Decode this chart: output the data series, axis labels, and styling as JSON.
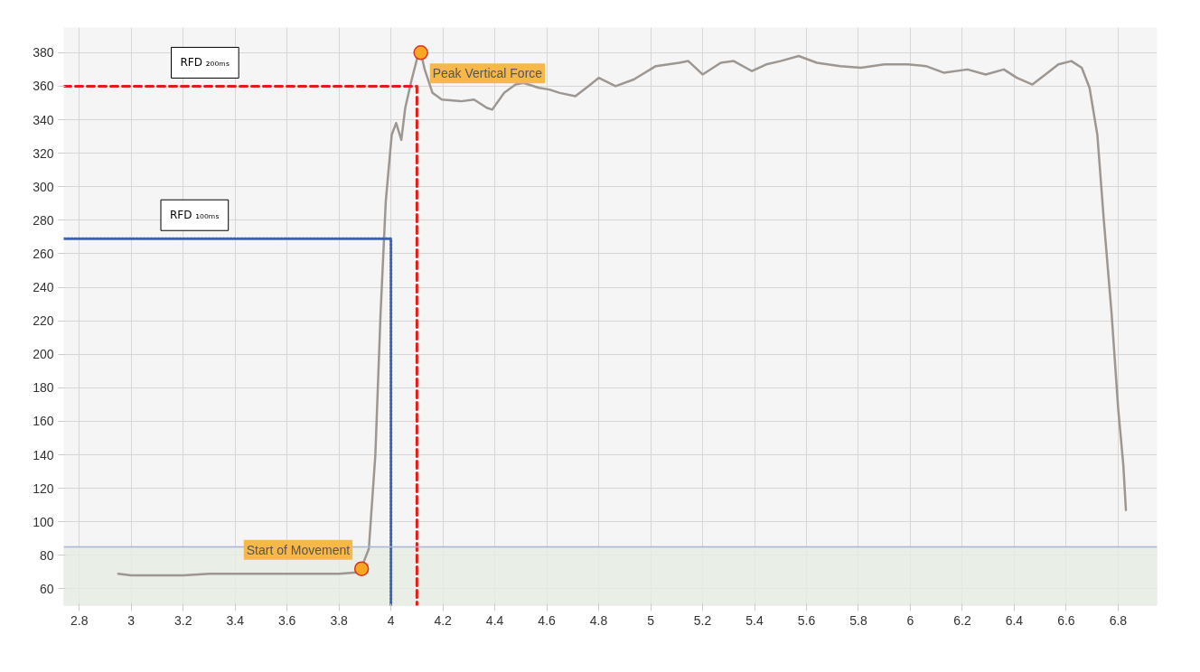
{
  "chart_data": {
    "type": "line",
    "xlim": [
      2.74,
      6.95
    ],
    "ylim": [
      50,
      395
    ],
    "xticks": [
      2.8,
      3,
      3.2,
      3.4,
      3.6,
      3.8,
      4,
      4.2,
      4.4,
      4.6,
      4.8,
      5,
      5.2,
      5.4,
      5.6,
      5.8,
      6,
      6.2,
      6.4,
      6.6,
      6.8
    ],
    "yticks": [
      60,
      80,
      100,
      120,
      140,
      160,
      180,
      200,
      220,
      240,
      260,
      280,
      300,
      320,
      340,
      360,
      380
    ],
    "grid": true,
    "bands": [
      {
        "axis": "y",
        "from": 50,
        "to": 85,
        "color": "#e6eee3"
      }
    ],
    "ref_lines": [
      {
        "axis": "y",
        "value": 85,
        "color": "#a9b4d6"
      }
    ],
    "series": [
      {
        "color": "#9e9690",
        "line_style": "solid",
        "x": [
          2.95,
          3.0,
          3.1,
          3.2,
          3.3,
          3.4,
          3.5,
          3.6,
          3.7,
          3.8,
          3.88,
          3.915,
          3.94,
          3.96,
          3.98,
          4.003,
          4.02,
          4.04,
          4.055,
          4.08,
          4.1,
          4.115,
          4.13,
          4.16,
          4.196,
          4.27,
          4.32,
          4.37,
          4.39,
          4.436,
          4.48,
          4.51,
          4.57,
          4.61,
          4.65,
          4.71,
          4.76,
          4.8,
          4.865,
          4.935,
          5.02,
          5.11,
          5.145,
          5.2,
          5.27,
          5.32,
          5.39,
          5.445,
          5.5,
          5.57,
          5.64,
          5.73,
          5.81,
          5.9,
          5.99,
          6.06,
          6.13,
          6.22,
          6.29,
          6.36,
          6.41,
          6.47,
          6.52,
          6.57,
          6.62,
          6.66,
          6.69,
          6.72,
          6.745,
          6.775,
          6.8,
          6.82,
          6.83
        ],
        "values": [
          69,
          68,
          68,
          68,
          69,
          69,
          69,
          69,
          69,
          69,
          70,
          84,
          140,
          224,
          291,
          331,
          338,
          328,
          347,
          364,
          376,
          380,
          370,
          356,
          352,
          351,
          352,
          347,
          346,
          356,
          361,
          362,
          359,
          358,
          356,
          354,
          360,
          365,
          360,
          364,
          372,
          374,
          375,
          367,
          374,
          375,
          369,
          373,
          375,
          378,
          374,
          372,
          371,
          373,
          373,
          372,
          368,
          370,
          367,
          370,
          365,
          361,
          367,
          373,
          375,
          371,
          359,
          331,
          280,
          224,
          168,
          134,
          107
        ]
      },
      {
        "type": "line",
        "color": "#e41b17",
        "line_style": "dashed",
        "x": [
          2.74,
          4.1,
          4.1
        ],
        "values": [
          360,
          360,
          50
        ]
      },
      {
        "type": "line",
        "color": "#3a5fbf",
        "line_style": "dotted",
        "x": [
          2.74,
          4.0,
          4.0
        ],
        "values": [
          269,
          269,
          50
        ]
      },
      {
        "type": "scatter",
        "color": "#f7a823",
        "marker": "circle",
        "x": [
          3.887,
          4.115
        ],
        "values": [
          72,
          380
        ]
      }
    ],
    "annotations": [
      "RFD ₂₀₀ₘₛ",
      "RFD ₁₀₀ₘₛ",
      {
        "text": "Peak Vertical Force",
        "x": 4.115,
        "y": 380
      },
      {
        "text": "Start of Movement",
        "x": 3.887,
        "y": 72
      }
    ]
  }
}
